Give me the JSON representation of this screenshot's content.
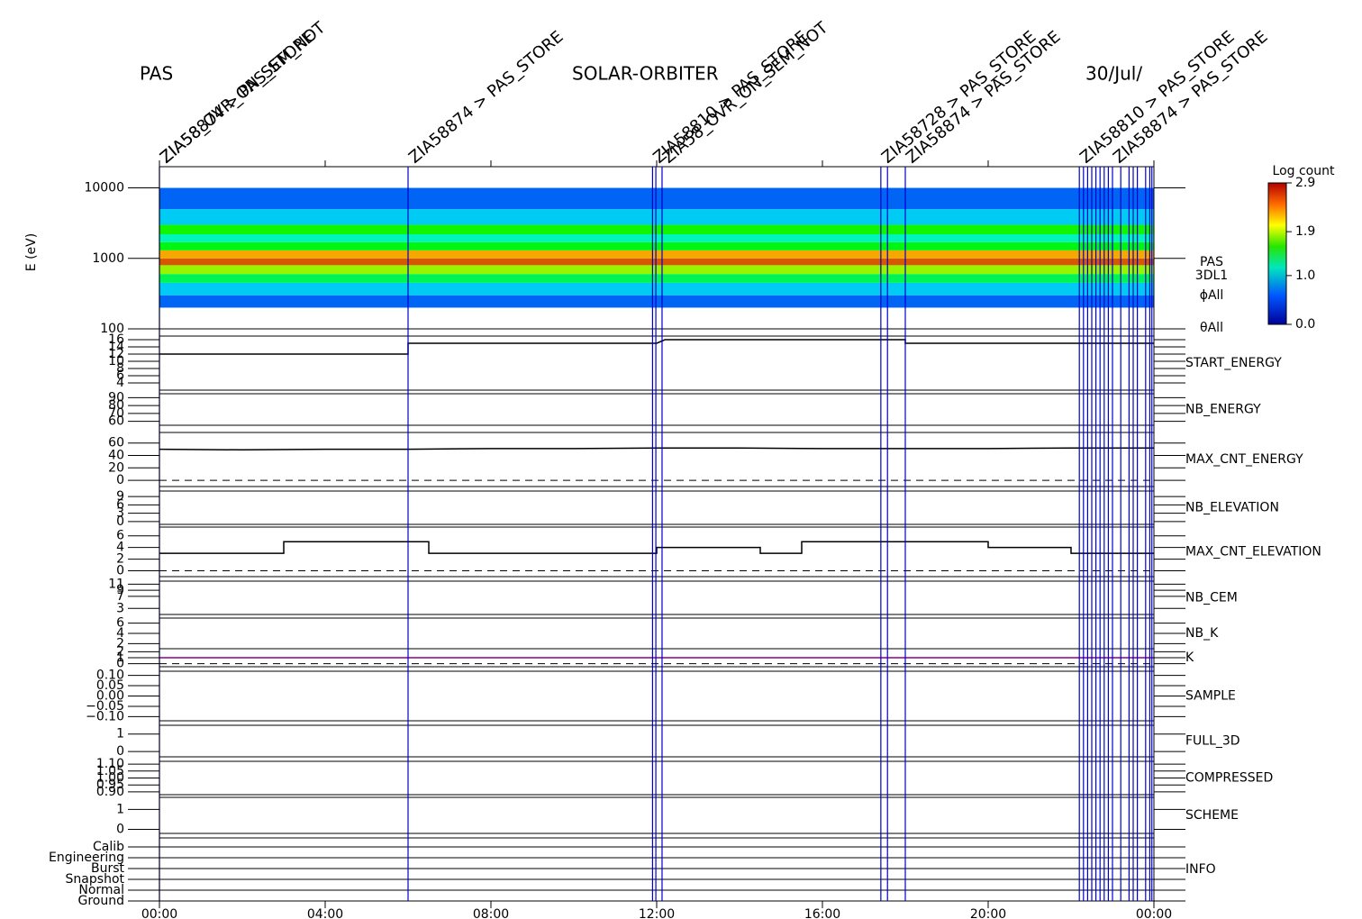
{
  "header": {
    "left": "PAS",
    "center": "SOLAR-ORBITER",
    "right": "30/Jul/"
  },
  "time_axis": {
    "xlim": [
      0,
      24
    ],
    "xticks": [
      {
        "value": 0,
        "label": "00:00"
      },
      {
        "value": 4,
        "label": "04:00"
      },
      {
        "value": 8,
        "label": "08:00"
      },
      {
        "value": 12,
        "label": "12:00"
      },
      {
        "value": 16,
        "label": "16:00"
      },
      {
        "value": 20,
        "label": "20:00"
      },
      {
        "value": 24,
        "label": "00:00"
      }
    ],
    "event_color": "#0000cc",
    "events": [
      0,
      6,
      11.9,
      11.98,
      12.13,
      17.41,
      17.57,
      18,
      22.2,
      22.3,
      22.4,
      22.5,
      22.6,
      22.7,
      22.8,
      22.9,
      23.0,
      23.2,
      23.4,
      23.5,
      23.6,
      23.8,
      23.9,
      23.95
    ]
  },
  "annotations": [
    {
      "x": 0,
      "text": "ZIA58874 > PAS_STORE",
      "color": "#0000cc"
    },
    {
      "x": 0,
      "text": "ZIA58_OVR_ON_SEM_NOT",
      "color": "#cc0000"
    },
    {
      "x": 6,
      "text": "ZIA58874 > PAS_STORE",
      "color": "#0000cc"
    },
    {
      "x": 11.9,
      "text": "ZIA58810 > PAS_STORE",
      "color": "#0000cc"
    },
    {
      "x": 12.13,
      "text": "ZIA58_OVR_ON_SEM_NOT",
      "color": "#cc0000"
    },
    {
      "x": 17.41,
      "text": "ZIA58728 > PAS_STORE",
      "color": "#0000cc"
    },
    {
      "x": 18,
      "text": "ZIA58874 > PAS_STORE",
      "color": "#0000cc"
    },
    {
      "x": 22.2,
      "text": "ZIA58810 > PAS_STORE",
      "color": "#0000cc"
    },
    {
      "x": 23.0,
      "text": "ZIA58874 > PAS_STORE",
      "color": "#0000cc"
    }
  ],
  "chart_data": [
    {
      "type": "heatmap",
      "ylabel": "E (eV)",
      "log_y": true,
      "ylim": [
        100,
        20000
      ],
      "yticks": [
        100,
        1000,
        10000
      ],
      "y_bins": [
        200,
        300,
        450,
        600,
        800,
        1000,
        1300,
        1700,
        2200,
        3000,
        5000,
        10000
      ],
      "values": [
        0.3,
        0.6,
        1.2,
        1.9,
        2.6,
        2.4,
        1.4,
        0.9,
        1.5,
        0.6,
        0.3
      ],
      "side_labels": [
        "PAS",
        "3DL1",
        "ϕAll",
        "θAll"
      ],
      "colorbar": {
        "title": "Log count",
        "lim": [
          0,
          2.9
        ],
        "ticks": [
          {
            "value": 0,
            "label": "0.0"
          },
          {
            "value": 1,
            "label": "1.0"
          },
          1.9,
          2.9
        ]
      }
    },
    {
      "type": "line",
      "name": "START_ENERGY",
      "label_color": "#000000",
      "color": "#000000",
      "ylim": [
        2,
        17
      ],
      "yticks": [
        4,
        6,
        8,
        10,
        12,
        14,
        16
      ],
      "x": [
        0,
        6,
        6,
        12,
        12.2,
        18,
        18,
        24
      ],
      "values": [
        12,
        12,
        15,
        15,
        16,
        16,
        15,
        15
      ]
    },
    {
      "type": "line",
      "name": "NB_ENERGY",
      "label_color": "#0000cc",
      "color": "#000000",
      "ylim": [
        55,
        95
      ],
      "yticks": [
        60,
        70,
        80,
        90
      ],
      "x": [],
      "values": []
    },
    {
      "type": "line",
      "name": "MAX_CNT_ENERGY",
      "label_color": "#000000",
      "color": "#000000",
      "ylim": [
        -10,
        77
      ],
      "yticks": [
        0,
        20,
        40,
        60
      ],
      "ref_line": 0,
      "x": [
        0,
        2,
        4,
        6,
        8,
        10,
        12,
        14,
        16,
        18,
        20,
        22,
        24
      ],
      "values": [
        50,
        49,
        50,
        50,
        51,
        51,
        52,
        52,
        51,
        51,
        51,
        52,
        52
      ]
    },
    {
      "type": "line",
      "name": "NB_ELEVATION",
      "label_color": "#0000cc",
      "color": "#000000",
      "ylim": [
        -1,
        11
      ],
      "yticks": [
        0,
        3,
        6,
        9
      ],
      "x": [],
      "values": []
    },
    {
      "type": "line",
      "name": "MAX_CNT_ELEVATION",
      "label_color": "#000000",
      "color": "#000000",
      "ylim": [
        -1,
        7.5
      ],
      "yticks": [
        0,
        2,
        4,
        6
      ],
      "ref_line": 0,
      "x": [
        0,
        3,
        3,
        6.5,
        6.5,
        12,
        12,
        14.5,
        14.5,
        15.5,
        15.5,
        17.5,
        17.5,
        20,
        20,
        22,
        22,
        24
      ],
      "values": [
        3,
        3,
        5,
        5,
        3,
        3,
        4,
        4,
        3,
        3,
        5,
        5,
        5,
        5,
        4,
        4,
        3,
        3
      ]
    },
    {
      "type": "line",
      "name": "NB_CEM",
      "label_color": "#0000cc",
      "color": "#000000",
      "ylim": [
        1,
        12
      ],
      "yticks": [
        3,
        7,
        9,
        11
      ],
      "x": [],
      "values": []
    },
    {
      "type": "line",
      "name": "NB_K",
      "label_color": "#cc0000",
      "color": "#000000",
      "ylim": [
        1,
        7
      ],
      "yticks": [
        2,
        4,
        6
      ],
      "x": [],
      "values": []
    },
    {
      "type": "line",
      "name": "K",
      "label_color": "#0000cc",
      "color": "#8b008b",
      "ylim": [
        -0.5,
        2.5
      ],
      "yticks": [
        0,
        1,
        2
      ],
      "ref_line": 0,
      "x": [
        0,
        24
      ],
      "values": [
        1,
        1
      ]
    },
    {
      "type": "line",
      "name": "SAMPLE",
      "label_color": "#0000cc",
      "color": "#000000",
      "ylim": [
        -0.12,
        0.12
      ],
      "yticks": [
        {
          "value": -0.1,
          "label": "−0.10"
        },
        {
          "value": -0.05,
          "label": "−0.05"
        },
        {
          "value": 0,
          "label": "0.00"
        },
        {
          "value": 0.05,
          "label": "0.05"
        },
        {
          "value": 0.1,
          "label": "0.10"
        }
      ],
      "x": [],
      "values": []
    },
    {
      "type": "line",
      "name": "FULL_3D",
      "label_color": "#0000cc",
      "color": "#000000",
      "ylim": [
        -0.3,
        1.5
      ],
      "yticks": [
        0,
        1
      ],
      "x": [],
      "values": []
    },
    {
      "type": "line",
      "name": "COMPRESSED",
      "label_color": "#000000",
      "color": "#000000",
      "ylim": [
        0.88,
        1.12
      ],
      "yticks": [
        {
          "value": 0.9,
          "label": "0.90"
        },
        {
          "value": 0.95,
          "label": "0.95"
        },
        {
          "value": 1,
          "label": "1.00"
        },
        {
          "value": 1.05,
          "label": "1.05"
        },
        {
          "value": 1.1,
          "label": "1.10"
        }
      ],
      "x": [],
      "values": []
    },
    {
      "type": "line",
      "name": "SCHEME",
      "label_color": "#000000",
      "color": "#000000",
      "ylim": [
        -0.2,
        1.6
      ],
      "yticks": [
        0,
        1
      ],
      "x": [],
      "values": []
    },
    {
      "type": "category",
      "name": "INFO",
      "label_color": "#000000",
      "categories": [
        "Calib",
        "Engineering",
        "Burst",
        "Snapshot",
        "Normal",
        "Ground"
      ]
    }
  ]
}
